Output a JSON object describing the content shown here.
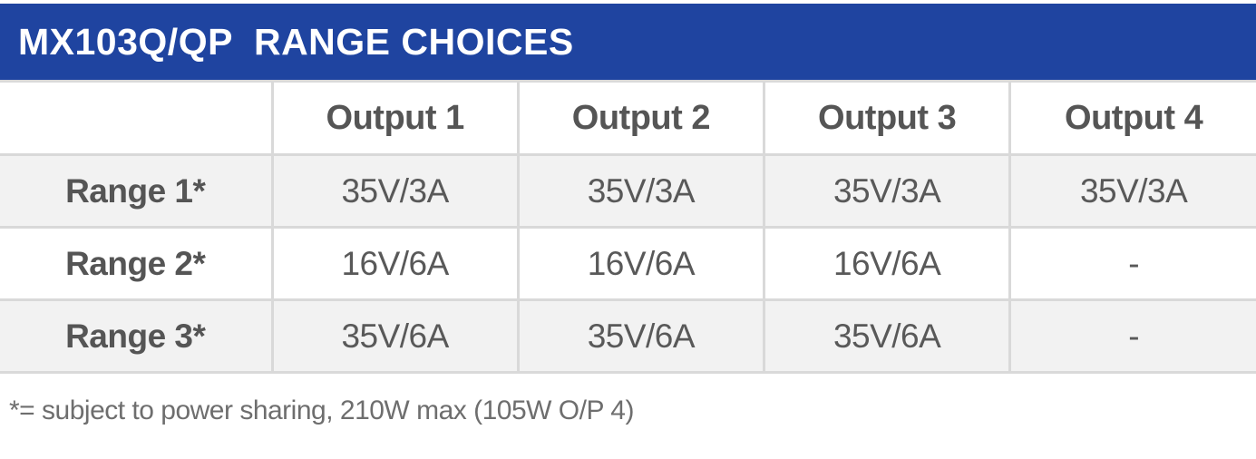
{
  "header": {
    "title": "MX103Q/QP  RANGE CHOICES"
  },
  "table": {
    "columns": [
      "Output 1",
      "Output 2",
      "Output 3",
      "Output 4"
    ],
    "rows": [
      {
        "label": "Range 1*",
        "values": [
          "35V/3A",
          "35V/3A",
          "35V/3A",
          "35V/3A"
        ]
      },
      {
        "label": "Range 2*",
        "values": [
          "16V/6A",
          "16V/6A",
          "16V/6A",
          "-"
        ]
      },
      {
        "label": "Range 3*",
        "values": [
          "35V/6A",
          "35V/6A",
          "35V/6A",
          "-"
        ]
      }
    ]
  },
  "footnote": "*= subject to power sharing, 210W max (105W O/P 4)",
  "colors": {
    "banner_blue": "#1f44a0",
    "row_stripe": "#f2f2f2",
    "border": "#d9d9d9",
    "heading_text": "#555555",
    "value_text": "#595959",
    "footnote_text": "#6e6e6e"
  }
}
